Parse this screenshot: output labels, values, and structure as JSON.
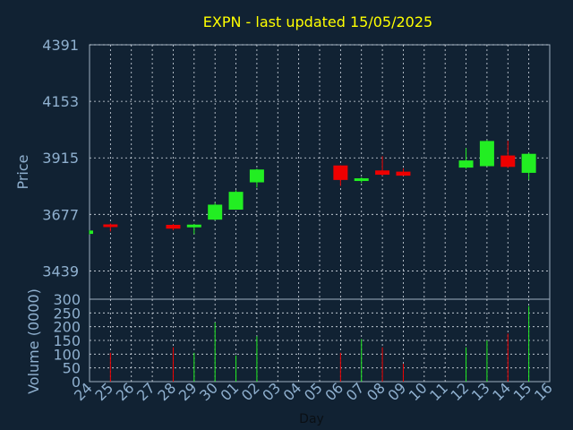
{
  "chart_data": {
    "type": "candlestick",
    "title": "EXPN - last updated 15/05/2025",
    "xlabel": "Day",
    "ylabel_price": "Price",
    "ylabel_volume": "Volume (0000)",
    "price_ticks": [
      3439,
      3677,
      3915,
      4153,
      4391
    ],
    "volume_ticks": [
      0,
      50,
      100,
      150,
      200,
      250,
      300
    ],
    "x_ticks": [
      "24",
      "25",
      "26",
      "27",
      "28",
      "29",
      "30",
      "01",
      "02",
      "03",
      "04",
      "05",
      "06",
      "07",
      "08",
      "09",
      "10",
      "11",
      "12",
      "13",
      "14",
      "15",
      "16"
    ],
    "price_range": [
      3320,
      4391
    ],
    "volume_range": [
      0,
      300
    ],
    "grid": true,
    "colors": {
      "background": "#112233",
      "text": "#8fb0cf",
      "title": "#ffff00",
      "up": "#22ee22",
      "down": "#ee0000",
      "grid": "#d6dde6",
      "axis": "#9fb0c0"
    },
    "candles": [
      {
        "day": "24",
        "open": 3595,
        "close": 3609,
        "high": 3611,
        "low": 3593,
        "volume": 0
      },
      {
        "day": "25",
        "open": 3635,
        "close": 3627,
        "high": 3639,
        "low": 3605,
        "volume": 105
      },
      {
        "day": "28",
        "open": 3633,
        "close": 3617,
        "high": 3637,
        "low": 3610,
        "volume": 125
      },
      {
        "day": "29",
        "open": 3627,
        "close": 3634,
        "high": 3637,
        "low": 3594,
        "volume": 105
      },
      {
        "day": "30",
        "open": 3655,
        "close": 3718,
        "high": 3726,
        "low": 3652,
        "volume": 215
      },
      {
        "day": "01",
        "open": 3697,
        "close": 3772,
        "high": 3779,
        "low": 3697,
        "volume": 95
      },
      {
        "day": "02",
        "open": 3812,
        "close": 3866,
        "high": 3869,
        "low": 3790,
        "volume": 165
      },
      {
        "day": "06",
        "open": 3883,
        "close": 3822,
        "high": 3884,
        "low": 3797,
        "volume": 105
      },
      {
        "day": "07",
        "open": 3821,
        "close": 3829,
        "high": 3833,
        "low": 3810,
        "volume": 155
      },
      {
        "day": "08",
        "open": 3862,
        "close": 3844,
        "high": 3922,
        "low": 3840,
        "volume": 125
      },
      {
        "day": "09",
        "open": 3857,
        "close": 3840,
        "high": 3871,
        "low": 3839,
        "volume": 65
      },
      {
        "day": "12",
        "open": 3874,
        "close": 3904,
        "high": 3956,
        "low": 3869,
        "volume": 125
      },
      {
        "day": "13",
        "open": 3880,
        "close": 3986,
        "high": 3990,
        "low": 3880,
        "volume": 150
      },
      {
        "day": "14",
        "open": 3925,
        "close": 3877,
        "high": 3987,
        "low": 3872,
        "volume": 175
      },
      {
        "day": "15",
        "open": 3852,
        "close": 3932,
        "high": 3936,
        "low": 3823,
        "volume": 275
      }
    ]
  }
}
